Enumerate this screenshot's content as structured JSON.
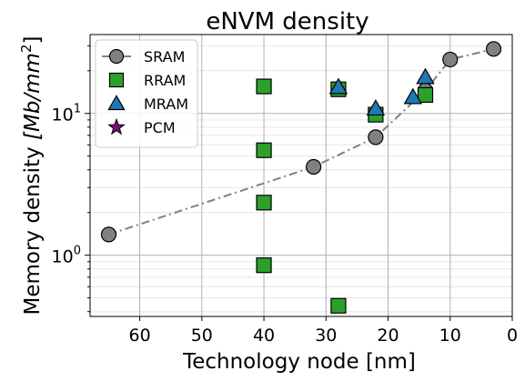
{
  "chart_data": {
    "type": "scatter",
    "title": "eNVM density",
    "xlabel": "Technology node [nm]",
    "ylabel_main": "Memory density ",
    "ylabel_math": "[Mb/mm",
    "ylabel_sup": "2",
    "ylabel_close": "]",
    "xlim": [
      68,
      0
    ],
    "xaxis_inverted": true,
    "ylim": [
      0.37,
      36
    ],
    "yscale": "log",
    "grid": true,
    "legend_position": "top-left",
    "x_ticks": [
      60,
      50,
      40,
      30,
      20,
      10,
      0
    ],
    "y_ticks": [
      1,
      10
    ],
    "y_tick_labels": [
      {
        "base": "10",
        "exp": "0"
      },
      {
        "base": "10",
        "exp": "1"
      }
    ],
    "series": [
      {
        "name": "SRAM",
        "marker": "circle",
        "color": "#808080",
        "line": "dashdot",
        "line_color": "#808080",
        "points": [
          [
            65,
            1.4
          ],
          [
            32,
            4.2
          ],
          [
            22,
            6.8
          ],
          [
            14,
            14.5
          ],
          [
            10,
            24
          ],
          [
            3,
            28.5
          ]
        ]
      },
      {
        "name": "RRAM",
        "marker": "square",
        "color": "#2ca02c",
        "points": [
          [
            40,
            15.5
          ],
          [
            40,
            5.5
          ],
          [
            40,
            2.35
          ],
          [
            40,
            0.85
          ],
          [
            28,
            0.44
          ],
          [
            28,
            14.8
          ],
          [
            22,
            9.8
          ],
          [
            14,
            13.5
          ]
        ]
      },
      {
        "name": "MRAM",
        "marker": "triangle",
        "color": "#1f77b4",
        "points": [
          [
            28,
            15.3
          ],
          [
            22,
            10.8
          ],
          [
            16,
            13
          ],
          [
            14,
            18
          ]
        ]
      },
      {
        "name": "PCM",
        "marker": "star",
        "color": "#7a0f7a",
        "points": []
      }
    ]
  }
}
